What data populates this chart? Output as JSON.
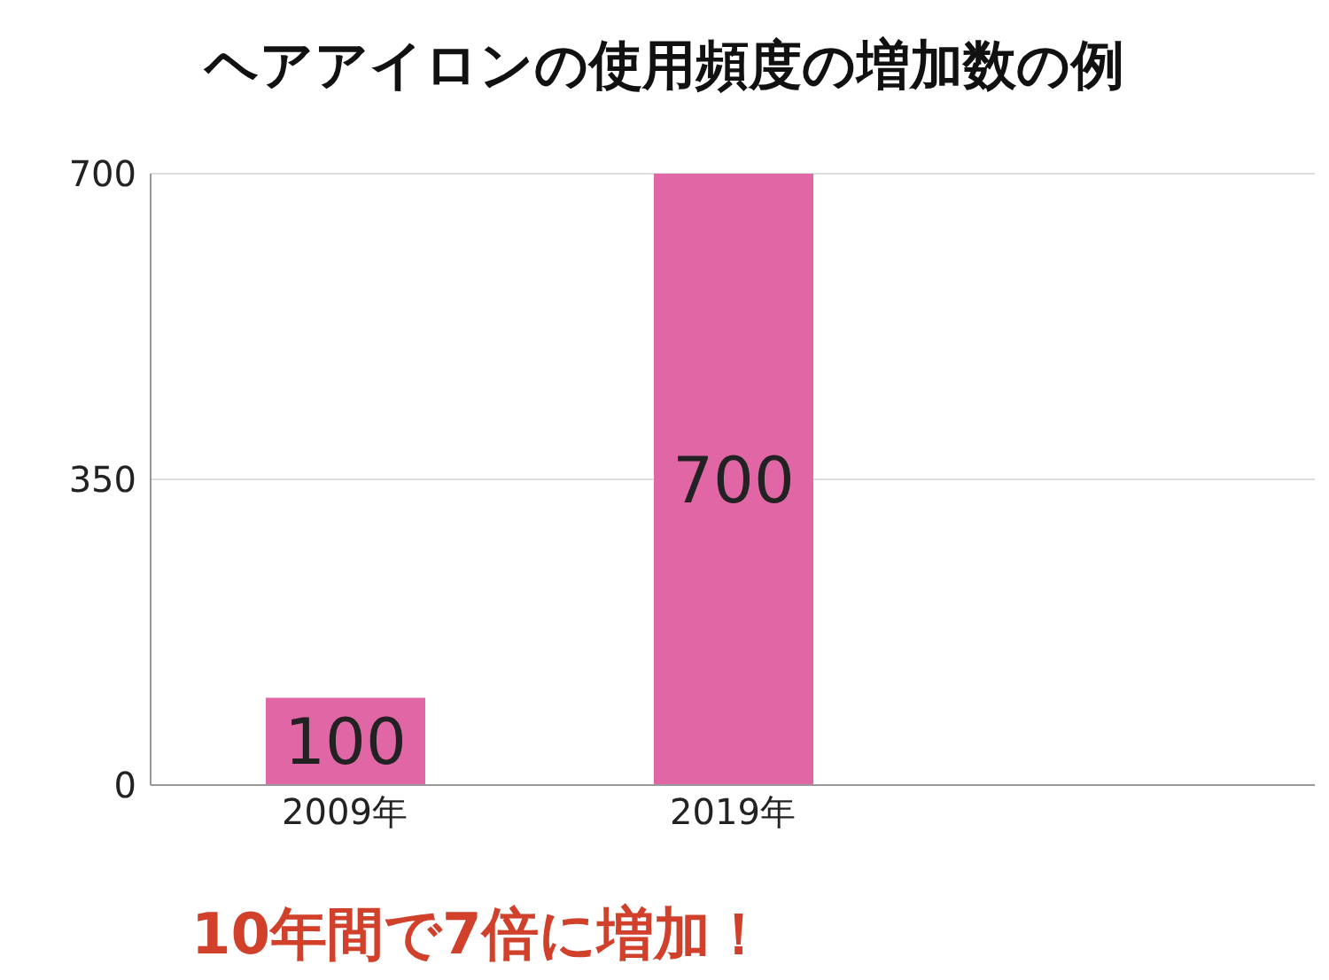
{
  "chart_data": {
    "type": "bar",
    "title": "ヘアアイロンの使用頻度の増加数の例",
    "categories": [
      "2009年",
      "2019年",
      null
    ],
    "values": [
      100,
      700,
      null
    ],
    "color": "#e066a6",
    "ylim": [
      0,
      700
    ],
    "yticks": [
      0,
      350,
      700
    ],
    "grid": "y",
    "data_labels": true,
    "annotations": [
      "10年間で7倍に増加！"
    ]
  }
}
